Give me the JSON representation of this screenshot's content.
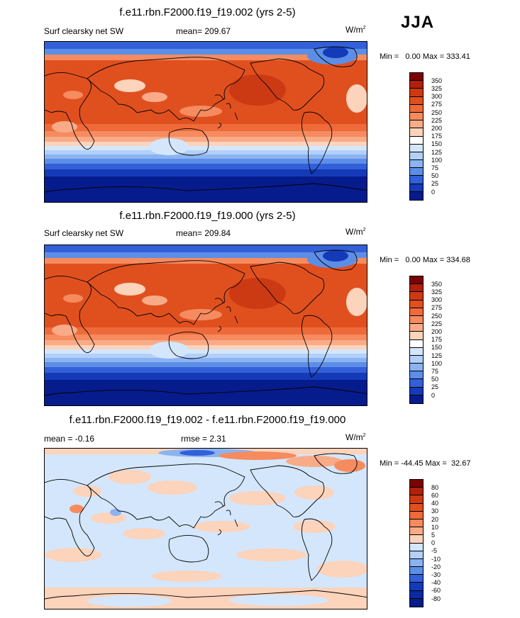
{
  "season": "JJA",
  "panels": [
    {
      "title": "f.e11.rbn.F2000.f19_f19.002 (yrs 2-5)",
      "left_label": "Surf clearsky net SW",
      "center_label": "mean= 209.67",
      "units": "W/m",
      "units_sup": "2",
      "min_text": "Min =",
      "min_value": "0.00",
      "max_text": "Max =",
      "max_value": "333.41",
      "colorbar_ticks": [
        "350",
        "325",
        "300",
        "275",
        "250",
        "225",
        "200",
        "175",
        "150",
        "125",
        "100",
        "75",
        "50",
        "25",
        "0"
      ]
    },
    {
      "title": "f.e11.rbn.F2000.f19_f19.000 (yrs 2-5)",
      "left_label": "Surf clearsky net SW",
      "center_label": "mean= 209.84",
      "units": "W/m",
      "units_sup": "2",
      "min_text": "Min =",
      "min_value": "0.00",
      "max_text": "Max =",
      "max_value": "334.68",
      "colorbar_ticks": [
        "350",
        "325",
        "300",
        "275",
        "250",
        "225",
        "200",
        "175",
        "150",
        "125",
        "100",
        "75",
        "50",
        "25",
        "0"
      ]
    },
    {
      "title": "f.e11.rbn.F2000.f19_f19.002 - f.e11.rbn.F2000.f19_f19.000",
      "left_label": "mean =  -0.16",
      "center_label": "rmse =   2.31",
      "units": "W/m",
      "units_sup": "2",
      "min_text": "Min =",
      "min_value": "-44.45",
      "max_text": "Max =",
      "max_value": "32.67",
      "colorbar_ticks": [
        "80",
        "60",
        "40",
        "30",
        "20",
        "10",
        "5",
        "0",
        "-5",
        "-10",
        "-20",
        "-30",
        "-40",
        "-60",
        "-80"
      ]
    }
  ],
  "colors": {
    "abs_scale": [
      "#7a0403",
      "#b1200a",
      "#cc3a14",
      "#e0501f",
      "#ef6a3a",
      "#f58b5f",
      "#f9ab88",
      "#fcd3bb",
      "#ffffff",
      "#d4e6fb",
      "#b2d0f8",
      "#8bb3f1",
      "#5c8ee7",
      "#3360d8",
      "#143ab8",
      "#061c8c"
    ],
    "diff_scale": [
      "#7a0403",
      "#b1200a",
      "#cc3a14",
      "#e0501f",
      "#ef6a3a",
      "#f58b5f",
      "#f9ab88",
      "#fcd3bb",
      "#ffffff",
      "#d4e6fb",
      "#b2d0f8",
      "#8bb3f1",
      "#5c8ee7",
      "#3360d8",
      "#143ab8",
      "#061c8c"
    ]
  }
}
